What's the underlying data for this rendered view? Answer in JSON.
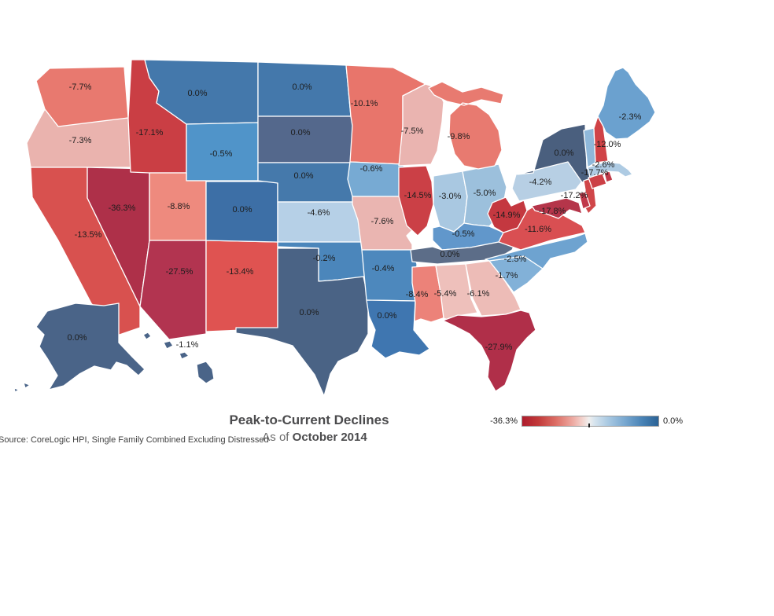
{
  "title": "Peak-to-Current Declines",
  "subtitle": {
    "prefix": "As of ",
    "date": "October 2014"
  },
  "source": "Source: CoreLogic HPI, Single Family Combined Excluding Distressed",
  "legend": {
    "min_label": "-36.3%",
    "max_label": "0.0%",
    "tick_fraction": 0.49,
    "gradient_stops": [
      [
        0,
        "#ae1c2c"
      ],
      [
        12,
        "#c23a3a"
      ],
      [
        25,
        "#dd6f66"
      ],
      [
        37,
        "#eda9a1"
      ],
      [
        45,
        "#f3d8d3"
      ],
      [
        49,
        "#f0efee"
      ],
      [
        53,
        "#d7e4ee"
      ],
      [
        63,
        "#a9c9e2"
      ],
      [
        76,
        "#76a6cf"
      ],
      [
        88,
        "#4983b6"
      ],
      [
        100,
        "#2b6295"
      ]
    ]
  },
  "chart_data": {
    "type": "heatmap",
    "subtype": "us-choropleth",
    "title": "Peak-to-Current Declines",
    "subtitle": "As of October 2014",
    "metric": "Peak-to-current home price decline (%)",
    "value_range": [
      -36.3,
      0
    ],
    "legend_position": "bottom-right",
    "states": [
      {
        "id": "WA",
        "name": "Washington",
        "value": -7.7,
        "label": "-7.7%",
        "color": "#e8796f"
      },
      {
        "id": "OR",
        "name": "Oregon",
        "value": -7.3,
        "label": "-7.3%",
        "color": "#eab3ae"
      },
      {
        "id": "CA",
        "name": "California",
        "value": -13.5,
        "label": "-13.5%",
        "color": "#d8514f"
      },
      {
        "id": "NV",
        "name": "Nevada",
        "value": -36.3,
        "label": "-36.3%",
        "color": "#ae3049"
      },
      {
        "id": "ID",
        "name": "Idaho",
        "value": -17.1,
        "label": "-17.1%",
        "color": "#ca3e44"
      },
      {
        "id": "MT",
        "name": "Montana",
        "value": 0.0,
        "label": "0.0%",
        "color": "#4478ab"
      },
      {
        "id": "WY",
        "name": "Wyoming",
        "value": -0.5,
        "label": "-0.5%",
        "color": "#5094c9"
      },
      {
        "id": "UT",
        "name": "Utah",
        "value": -8.8,
        "label": "-8.8%",
        "color": "#ee8a7e"
      },
      {
        "id": "AZ",
        "name": "Arizona",
        "value": -27.5,
        "label": "-27.5%",
        "color": "#b23450"
      },
      {
        "id": "NM",
        "name": "New Mexico",
        "value": -13.4,
        "label": "-13.4%",
        "color": "#df5351"
      },
      {
        "id": "CO",
        "name": "Colorado",
        "value": 0.0,
        "label": "0.0%",
        "color": "#3d6fa6"
      },
      {
        "id": "ND",
        "name": "North Dakota",
        "value": 0.0,
        "label": "0.0%",
        "color": "#4478ab"
      },
      {
        "id": "SD",
        "name": "South Dakota",
        "value": 0.0,
        "label": "0.0%",
        "color": "#54688c"
      },
      {
        "id": "NE",
        "name": "Nebraska",
        "value": 0.0,
        "label": "0.0%",
        "color": "#4579ab"
      },
      {
        "id": "KS",
        "name": "Kansas",
        "value": -4.6,
        "label": "-4.6%",
        "color": "#b6d0e7"
      },
      {
        "id": "OK",
        "name": "Oklahoma",
        "value": -0.2,
        "label": "-0.2%",
        "color": "#4b86bb"
      },
      {
        "id": "TX",
        "name": "Texas",
        "value": 0.0,
        "label": "0.0%",
        "color": "#4a6385"
      },
      {
        "id": "MN",
        "name": "Minnesota",
        "value": -10.1,
        "label": "-10.1%",
        "color": "#e8756b"
      },
      {
        "id": "IA",
        "name": "Iowa",
        "value": -0.6,
        "label": "-0.6%",
        "color": "#77aad3"
      },
      {
        "id": "MO",
        "name": "Missouri",
        "value": -7.6,
        "label": "-7.6%",
        "color": "#eab5b1"
      },
      {
        "id": "AR",
        "name": "Arkansas",
        "value": -0.4,
        "label": "-0.4%",
        "color": "#4d88bd"
      },
      {
        "id": "LA",
        "name": "Louisiana",
        "value": 0.0,
        "label": "0.0%",
        "color": "#3f76b0"
      },
      {
        "id": "WI",
        "name": "Wisconsin",
        "value": -7.5,
        "label": "-7.5%",
        "color": "#eab4b0"
      },
      {
        "id": "IL",
        "name": "Illinois",
        "value": -14.5,
        "label": "-14.5%",
        "color": "#cb4046"
      },
      {
        "id": "IN",
        "name": "Indiana",
        "value": -3.0,
        "label": "-3.0%",
        "color": "#a9c8e1"
      },
      {
        "id": "OH",
        "name": "Ohio",
        "value": -5.0,
        "label": "-5.0%",
        "color": "#9cc0dc"
      },
      {
        "id": "MI",
        "name": "Michigan",
        "value": -9.8,
        "label": "-9.8%",
        "color": "#e87a70"
      },
      {
        "id": "KY",
        "name": "Kentucky",
        "value": -0.5,
        "label": "-0.5%",
        "color": "#6197cb"
      },
      {
        "id": "TN",
        "name": "Tennessee",
        "value": 0.0,
        "label": "0.0%",
        "color": "#5c6d88"
      },
      {
        "id": "MS",
        "name": "Mississippi",
        "value": -8.4,
        "label": "-8.4%",
        "color": "#ec8279"
      },
      {
        "id": "AL",
        "name": "Alabama",
        "value": -5.4,
        "label": "-5.4%",
        "color": "#eec0bb"
      },
      {
        "id": "GA",
        "name": "Georgia",
        "value": -6.1,
        "label": "-6.1%",
        "color": "#edbcb7"
      },
      {
        "id": "FL",
        "name": "Florida",
        "value": -27.9,
        "label": "-27.9%",
        "color": "#b02f49"
      },
      {
        "id": "SC",
        "name": "South Carolina",
        "value": -1.7,
        "label": "-1.7%",
        "color": "#82b1d8"
      },
      {
        "id": "NC",
        "name": "North Carolina",
        "value": -2.5,
        "label": "-2.5%",
        "color": "#6ea3d0"
      },
      {
        "id": "VA",
        "name": "Virginia",
        "value": -11.6,
        "label": "-11.6%",
        "color": "#d94f52"
      },
      {
        "id": "WV",
        "name": "West Virginia",
        "value": -14.9,
        "label": "-14.9%",
        "color": "#c43840"
      },
      {
        "id": "PA",
        "name": "Pennsylvania",
        "value": -4.2,
        "label": "-4.2%",
        "color": "#b7cfe4"
      },
      {
        "id": "NY",
        "name": "New York",
        "value": 0.0,
        "label": "0.0%",
        "color": "#4a5f7e"
      },
      {
        "id": "NJ",
        "name": "New Jersey",
        "value": -17.2,
        "label": "-17.2%",
        "color": "#d04649"
      },
      {
        "id": "DE",
        "name": "Delaware",
        "label": "",
        "color": "#c0394a"
      },
      {
        "id": "MD",
        "name": "Maryland",
        "value": -17.8,
        "label": "-17.8%",
        "color": "#b5354a"
      },
      {
        "id": "CT",
        "name": "Connecticut",
        "value": -17.7,
        "label": "-17.7%",
        "color": "#cc4046"
      },
      {
        "id": "RI",
        "name": "Rhode Island",
        "label": "",
        "color": "#c03b49"
      },
      {
        "id": "MA",
        "name": "Massachusetts",
        "value": -2.6,
        "label": "-2.6%",
        "color": "#aecbe3"
      },
      {
        "id": "VT",
        "name": "Vermont",
        "label": "",
        "color": "#8fb8da"
      },
      {
        "id": "NH",
        "name": "New Hampshire",
        "value": -12.0,
        "label": "-12.0%",
        "color": "#d04347"
      },
      {
        "id": "ME",
        "name": "Maine",
        "value": -2.3,
        "label": "-2.3%",
        "color": "#6ba1cf"
      },
      {
        "id": "AK",
        "name": "Alaska",
        "value": 0.0,
        "label": "0.0%",
        "color": "#4a6488"
      },
      {
        "id": "HI",
        "name": "Hawaii",
        "value": -1.1,
        "label": "-1.1%",
        "color": "#4a6488"
      }
    ]
  }
}
